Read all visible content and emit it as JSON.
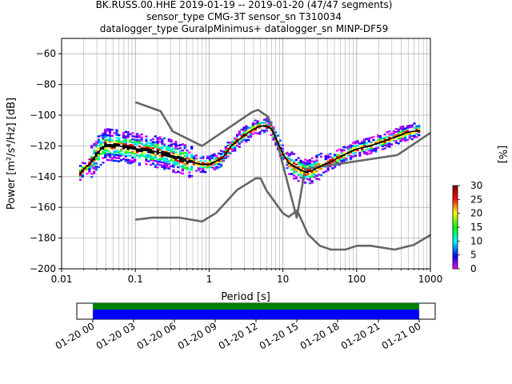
{
  "chart_data": {
    "type": "heatmap",
    "title_lines": [
      "BK.RUSS.00.HHE   2019-01-19 -- 2019-01-20  (47/47 segments)",
      "sensor_type CMG-3T sensor_sn T310034",
      "datalogger_type GuralpMinimus+ datalogger_sn MINP-DF59"
    ],
    "xlabel": "Period [s]",
    "ylabel": "Power [m²/s⁴/Hz] [dB]",
    "xscale": "log",
    "xlim": [
      0.01,
      1000
    ],
    "ylim": [
      -200,
      -50
    ],
    "xticks": [
      0.01,
      0.1,
      1,
      10,
      100,
      1000
    ],
    "xtick_labels": [
      "0.01",
      "0.1",
      "1",
      "10",
      "100",
      "1000"
    ],
    "yticks": [
      -200,
      -180,
      -160,
      -140,
      -120,
      -100,
      -80,
      -60
    ],
    "ytick_labels": [
      "−200",
      "−180",
      "−160",
      "−140",
      "−120",
      "−100",
      "−80",
      "−60"
    ],
    "grid": true,
    "colorbar": {
      "label": "[%]",
      "range": [
        0,
        30
      ],
      "ticks": [
        "0",
        "5",
        "10",
        "15",
        "20",
        "25",
        "30"
      ]
    },
    "noise_models": {
      "high": {
        "period": [
          0.1,
          0.22,
          0.32,
          0.8,
          3.8,
          4.6,
          6.3,
          7.9,
          15.4,
          20,
          354.8
        ],
        "power": [
          -91.5,
          -97.4,
          -110.5,
          -120,
          -98,
          -96.5,
          -101,
          -113.5,
          -166.7,
          -135,
          -126
        ]
      },
      "high_extension": {
        "period": [
          354.8,
          1000
        ],
        "power": [
          -126,
          -111.5
        ]
      },
      "low": {
        "period": [
          0.1,
          0.17,
          0.4,
          0.8,
          1.24,
          2.4,
          4.3,
          5,
          6,
          10,
          12,
          15.6,
          21.9,
          31.6,
          45,
          70,
          101,
          154,
          328,
          600,
          1000
        ],
        "power": [
          -168,
          -166.7,
          -166.7,
          -169.2,
          -163.7,
          -148.6,
          -141.1,
          -141.1,
          -149,
          -163.8,
          -166.2,
          -162.1,
          -177.5,
          -185,
          -187.5,
          -187.5,
          -185,
          -185,
          -187.5,
          -184.4,
          -178
        ]
      }
    },
    "mode_curve": {
      "name": "mode",
      "period": [
        0.018,
        0.02,
        0.025,
        0.03,
        0.04,
        0.06,
        0.1,
        0.15,
        0.2,
        0.3,
        0.5,
        0.8,
        1.0,
        1.5,
        2,
        3,
        4,
        5,
        6,
        7,
        8,
        10,
        12,
        15,
        20,
        25,
        30,
        50,
        80,
        100,
        150,
        200,
        300,
        500,
        700
      ],
      "power": [
        -138,
        -135,
        -131,
        -125,
        -119,
        -120,
        -122,
        -123,
        -124,
        -126,
        -130,
        -132,
        -132,
        -128,
        -120,
        -113,
        -109,
        -107,
        -107,
        -109,
        -115,
        -125,
        -131,
        -134,
        -137,
        -136,
        -134,
        -129,
        -124,
        -122,
        -120,
        -118,
        -115,
        -111,
        -110
      ]
    },
    "scatter_band": {
      "upper_offset_db": 8,
      "lower_offset_db": 8
    },
    "time_axis": {
      "tick_labels": [
        "01-20 00",
        "01-20 03",
        "01-20 06",
        "01-20 09",
        "01-20 12",
        "01-20 15",
        "01-20 18",
        "01-20 21",
        "01-21 00"
      ],
      "coverage_colors": [
        "#008000",
        "#0000ff"
      ]
    }
  }
}
